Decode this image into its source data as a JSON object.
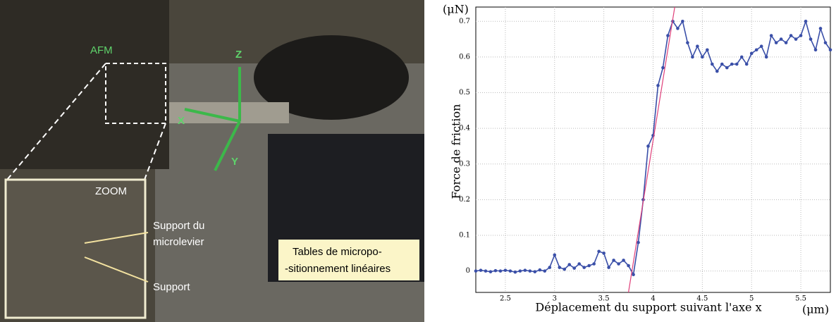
{
  "chart_data": {
    "type": "line",
    "y_label": "Force de friction",
    "x_label": "Déplacement du support suivant l'axe x",
    "y_unit": "(μN)",
    "x_unit": "(μm)",
    "xlim": [
      2.2,
      5.8
    ],
    "xticks": [
      2.5,
      3,
      3.5,
      4,
      4.5,
      5,
      5.5
    ],
    "ylim": [
      -0.06,
      0.74
    ],
    "yticks": [
      0,
      0.1,
      0.2,
      0.3,
      0.4,
      0.5,
      0.6,
      0.7
    ],
    "grid": true,
    "series": [
      {
        "color": "#3a4fa8",
        "x": [
          2.2,
          2.25,
          2.3,
          2.35,
          2.4,
          2.45,
          2.5,
          2.55,
          2.6,
          2.65,
          2.7,
          2.75,
          2.8,
          2.85,
          2.9,
          2.95,
          3.0,
          3.05,
          3.1,
          3.15,
          3.2,
          3.25,
          3.3,
          3.35,
          3.4,
          3.45,
          3.5,
          3.55,
          3.6,
          3.65,
          3.7,
          3.75,
          3.8,
          3.85,
          3.9,
          3.95,
          4.0,
          4.05,
          4.1,
          4.15,
          4.2,
          4.25,
          4.3,
          4.35,
          4.4,
          4.45,
          4.5,
          4.55,
          4.6,
          4.65,
          4.7,
          4.75,
          4.8,
          4.85,
          4.9,
          4.95,
          5.0,
          5.05,
          5.1,
          5.15,
          5.2,
          5.25,
          5.3,
          5.35,
          5.4,
          5.45,
          5.5,
          5.55,
          5.6,
          5.65,
          5.7,
          5.75,
          5.8
        ],
        "values": [
          0,
          0.002,
          0,
          -0.002,
          0.001,
          0,
          0.002,
          0,
          -0.003,
          0,
          0.002,
          0,
          -0.002,
          0.003,
          0,
          0.01,
          0.045,
          0.01,
          0.005,
          0.018,
          0.008,
          0.02,
          0.01,
          0.015,
          0.02,
          0.055,
          0.05,
          0.01,
          0.03,
          0.02,
          0.03,
          0.015,
          -0.01,
          0.08,
          0.2,
          0.35,
          0.38,
          0.52,
          0.57,
          0.66,
          0.7,
          0.68,
          0.7,
          0.64,
          0.6,
          0.63,
          0.6,
          0.62,
          0.58,
          0.56,
          0.58,
          0.57,
          0.58,
          0.58,
          0.6,
          0.58,
          0.61,
          0.62,
          0.63,
          0.6,
          0.66,
          0.64,
          0.65,
          0.64,
          0.66,
          0.65,
          0.66,
          0.7,
          0.65,
          0.62,
          0.68,
          0.64,
          0.62
        ]
      },
      {
        "color": "#e0407a",
        "x": [
          3.75,
          4.22
        ],
        "values": [
          -0.06,
          0.74
        ]
      }
    ]
  },
  "photo": {
    "afm": "AFM",
    "z": "Z",
    "x": "X",
    "y": "Y",
    "zoom": "ZOOM",
    "support_microlevier": [
      "Support du",
      "microlevier"
    ],
    "support": "Support",
    "tables": [
      "Tables de micropo-",
      "-sitionnement linéaires"
    ]
  }
}
